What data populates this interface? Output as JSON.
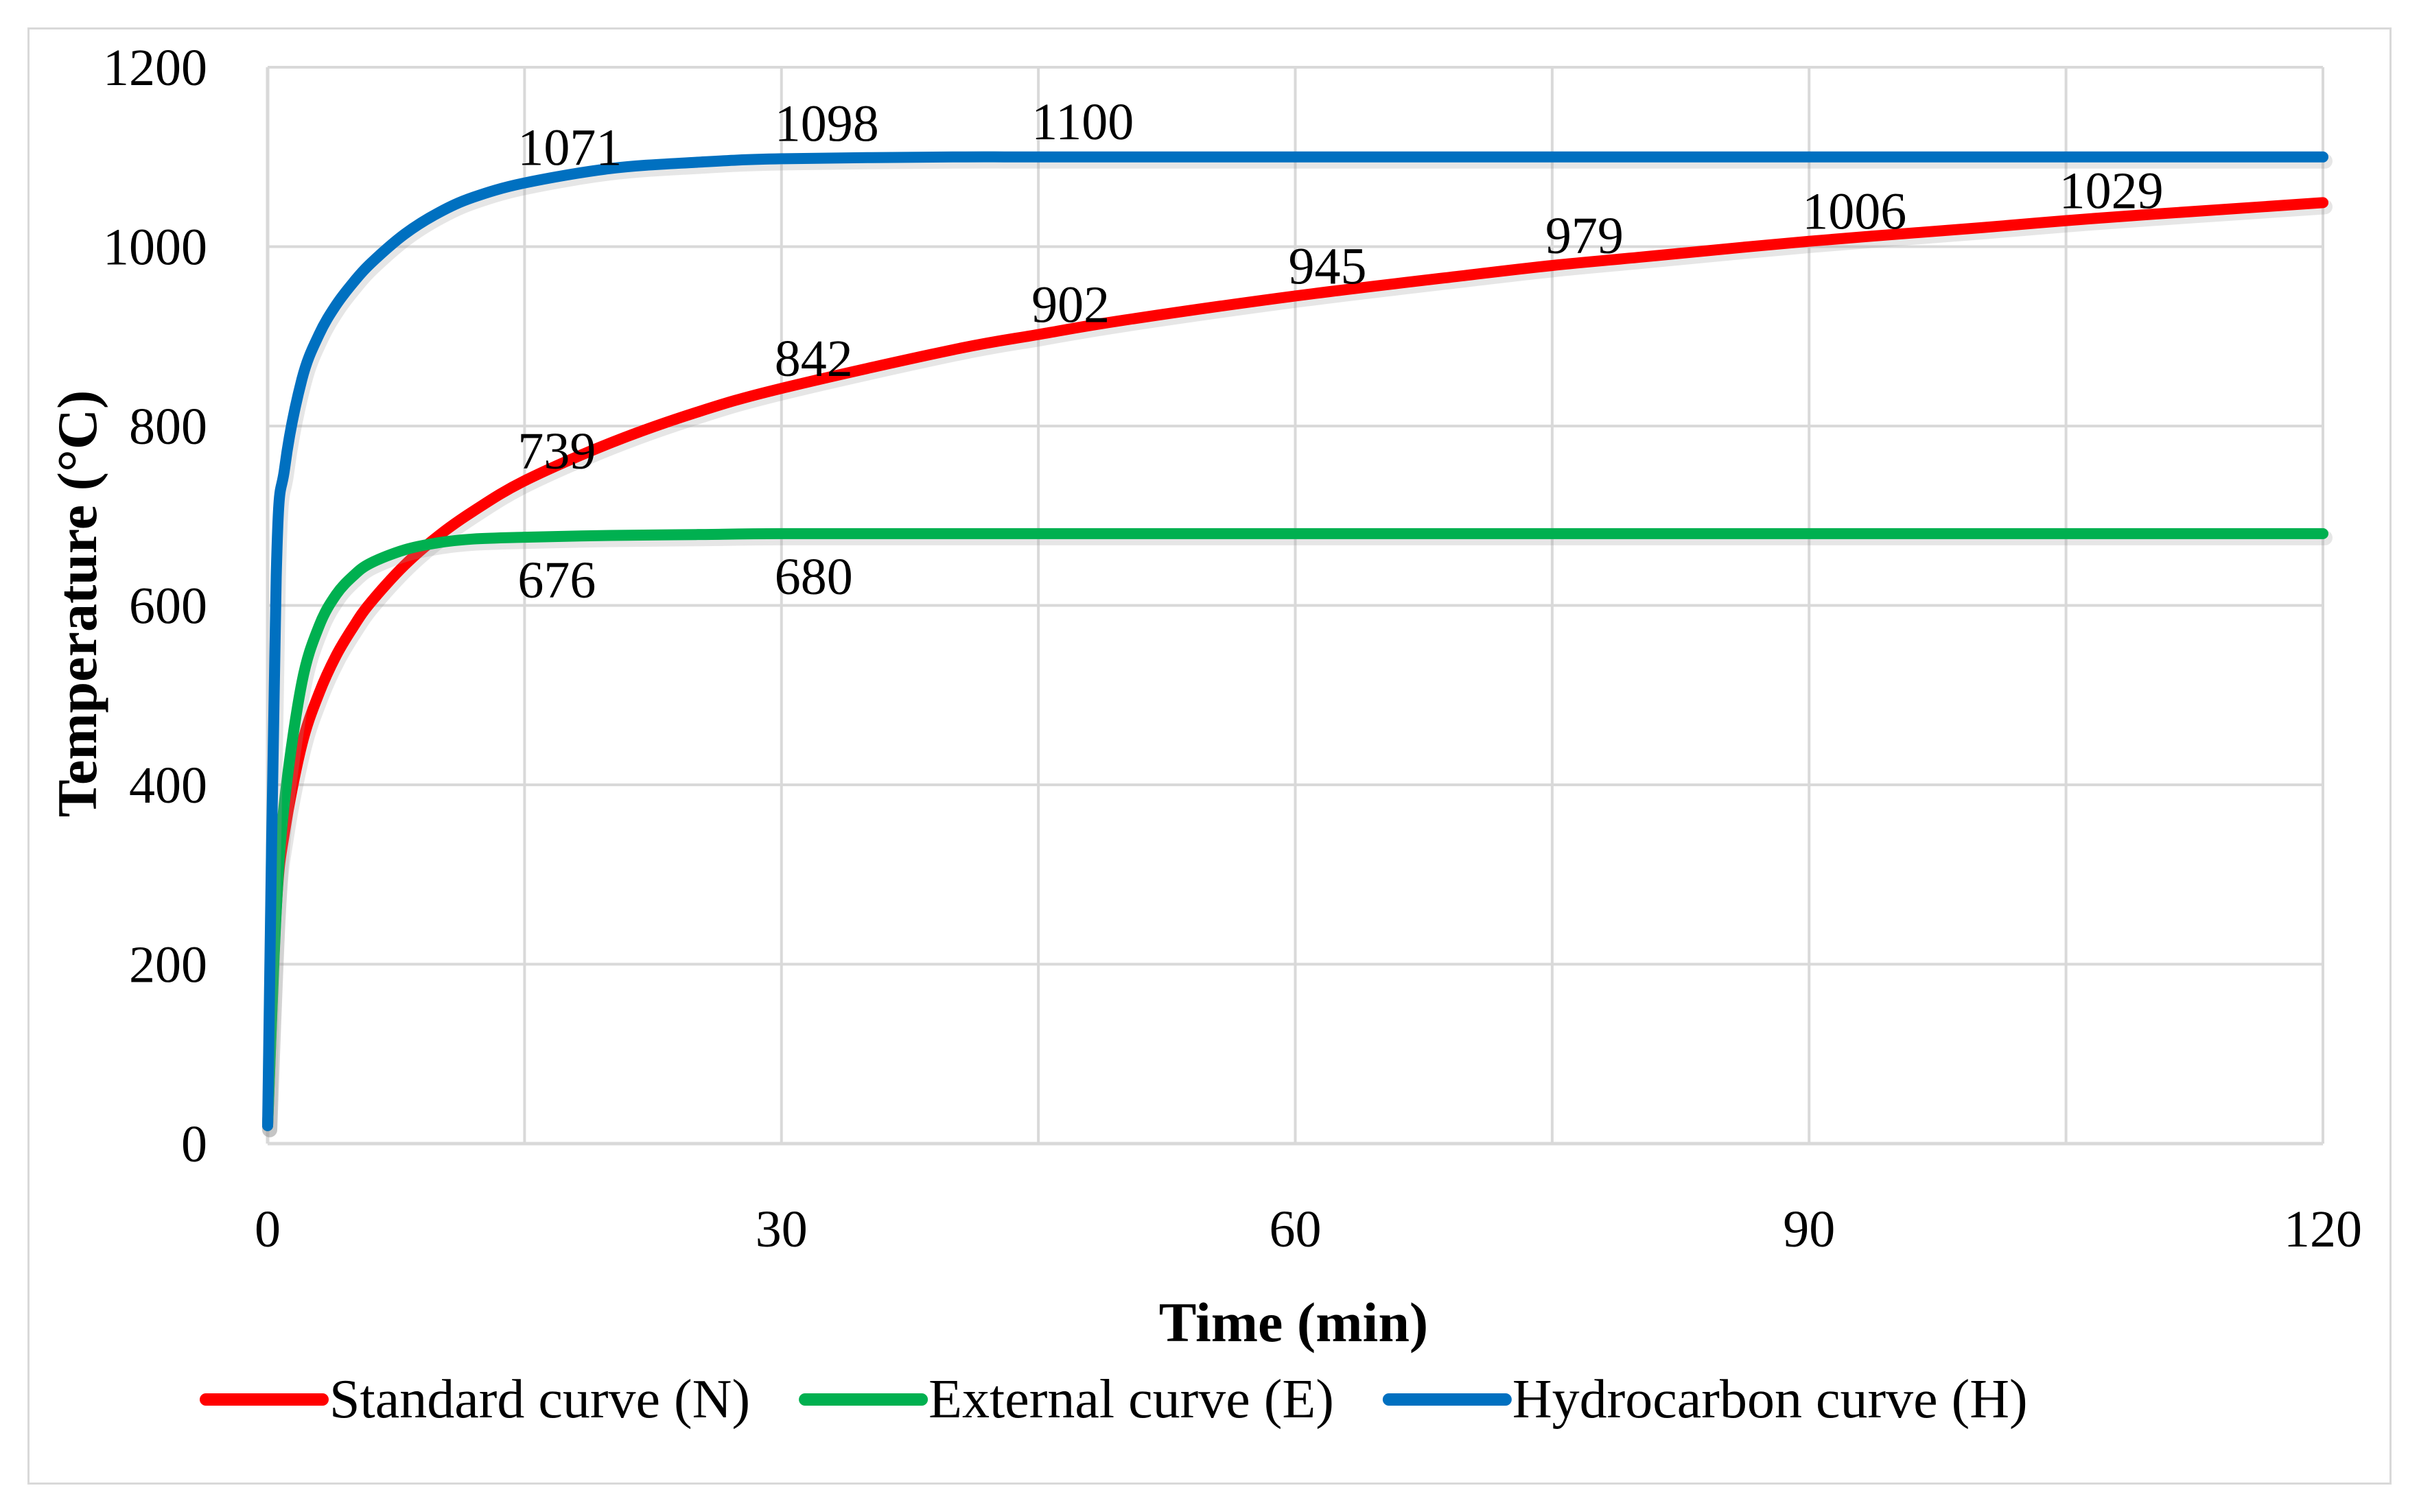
{
  "chart_data": {
    "type": "line",
    "xlabel": "Time (min)",
    "ylabel": "Temperature (°C)",
    "xlim": [
      0,
      120
    ],
    "ylim": [
      0,
      1200
    ],
    "x_ticks": [
      0,
      30,
      60,
      90,
      120
    ],
    "y_ticks": [
      0,
      200,
      400,
      600,
      800,
      1000,
      1200
    ],
    "grid": true,
    "legend_position": "bottom",
    "series": [
      {
        "name": "Standard curve (N)",
        "color": "#ff0000",
        "x": [
          0,
          0.5,
          1,
          2,
          3,
          4,
          5,
          6,
          8,
          10,
          12,
          15,
          20,
          25,
          30,
          40,
          45,
          50,
          60,
          70,
          75,
          80,
          90,
          100,
          105,
          110,
          120
        ],
        "y": [
          20,
          261,
          349,
          445,
          502,
          544,
          576,
          603,
          645,
          678,
          705,
          739,
          781,
          815,
          842,
          885,
          902,
          918,
          945,
          968,
          979,
          988,
          1006,
          1021,
          1029,
          1036,
          1049
        ]
      },
      {
        "name": "External curve (E)",
        "color": "#00b050",
        "x": [
          0,
          0.5,
          1,
          2,
          3,
          4,
          5,
          6,
          8,
          10,
          12,
          15,
          20,
          25,
          30,
          40,
          60,
          90,
          120
        ],
        "y": [
          20,
          259,
          384,
          514,
          577,
          612,
          633,
          647,
          662,
          670,
          674,
          676,
          678,
          679,
          680,
          680,
          680,
          680,
          680
        ]
      },
      {
        "name": "Hydrocarbon curve (H)",
        "color": "#0070c0",
        "x": [
          0,
          0.5,
          1,
          2,
          3,
          4,
          5,
          6,
          8,
          10,
          12,
          15,
          20,
          25,
          30,
          40,
          45,
          60,
          90,
          120
        ],
        "y": [
          20,
          632,
          754,
          852,
          902,
          935,
          960,
          981,
          1014,
          1038,
          1055,
          1071,
          1087,
          1094,
          1098,
          1100,
          1100,
          1100,
          1100,
          1100
        ]
      }
    ],
    "data_labels": [
      {
        "text": "1071",
        "x": 15,
        "y": 1071,
        "series": "Hydrocarbon curve (H)"
      },
      {
        "text": "1098",
        "x": 30,
        "y": 1098,
        "series": "Hydrocarbon curve (H)"
      },
      {
        "text": "1100",
        "x": 45,
        "y": 1100,
        "series": "Hydrocarbon curve (H)"
      },
      {
        "text": "739",
        "x": 15,
        "y": 739,
        "series": "Standard curve (N)"
      },
      {
        "text": "842",
        "x": 30,
        "y": 842,
        "series": "Standard curve (N)"
      },
      {
        "text": "902",
        "x": 45,
        "y": 902,
        "series": "Standard curve (N)"
      },
      {
        "text": "945",
        "x": 60,
        "y": 945,
        "series": "Standard curve (N)"
      },
      {
        "text": "979",
        "x": 75,
        "y": 979,
        "series": "Standard curve (N)"
      },
      {
        "text": "1006",
        "x": 90,
        "y": 1006,
        "series": "Standard curve (N)"
      },
      {
        "text": "1029",
        "x": 105,
        "y": 1029,
        "series": "Standard curve (N)"
      },
      {
        "text": "676",
        "x": 15,
        "y": 676,
        "series": "External curve (E)"
      },
      {
        "text": "680",
        "x": 30,
        "y": 680,
        "series": "External curve (E)"
      }
    ]
  }
}
